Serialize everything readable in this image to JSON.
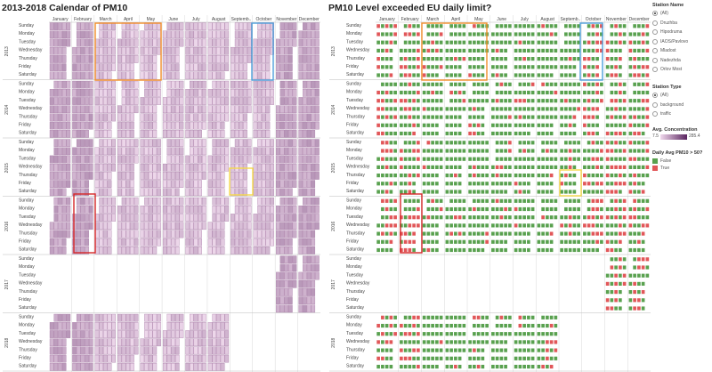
{
  "titles": {
    "left": "2013-2018 Calendar of PM10",
    "right": "PM10 Level exceeded EU daily limit?"
  },
  "months": [
    "January",
    "February",
    "March",
    "April",
    "May",
    "June",
    "July",
    "August",
    "Septemb..",
    "October",
    "November",
    "December"
  ],
  "days": [
    "Sunday",
    "Monday",
    "Tuesday",
    "Wednesday",
    "Thursday",
    "Friday",
    "Saturday"
  ],
  "years": [
    "2013",
    "2014",
    "2015",
    "2016",
    "2017",
    "2018"
  ],
  "sidebar": {
    "station_name": {
      "title": "Station Name",
      "options": [
        "(All)",
        "Druzhba",
        "Hipodruma",
        "IAOS/Pavlovo",
        "Mladost",
        "Nadezhda",
        "Orlov Most"
      ],
      "selected": "(All)"
    },
    "station_type": {
      "title": "Station Type",
      "options": [
        "(All)",
        "background",
        "traffic"
      ],
      "selected": "(All)"
    },
    "avg_conc": {
      "title": "Avg. Concentration",
      "min": "7.5",
      "max": "285.4"
    },
    "exceed": {
      "title": "Daily Avg PM10 > 50?",
      "items": [
        {
          "label": "False",
          "color": "#59a14f"
        },
        {
          "label": "True",
          "color": "#e15759"
        }
      ]
    }
  },
  "colors": {
    "heat_low": "#f1dcee",
    "heat_high": "#5a2560",
    "false": "#59a14f",
    "true": "#e15759",
    "orange_box": "#f28e2b",
    "blue_box": "#4e9fdc",
    "yellow_box": "#f5d94a",
    "red_box": "#d62728"
  },
  "chart_data": [
    {
      "type": "heatmap",
      "title": "2013-2018 Calendar of PM10",
      "rows": "year / weekday",
      "columns": "month / week",
      "color_measure": "Avg. Concentration",
      "color_range": [
        7.5,
        285.4
      ],
      "years_present": {
        "2013": [
          1,
          2,
          3,
          4,
          5,
          6,
          7,
          8,
          9,
          10,
          11,
          12
        ],
        "2014": [
          1,
          2,
          3,
          4,
          5,
          6,
          7,
          8,
          9,
          10,
          11,
          12
        ],
        "2015": [
          1,
          2,
          3,
          4,
          5,
          6,
          7,
          8,
          9,
          10,
          11,
          12
        ],
        "2016": [
          1,
          2,
          3,
          4,
          5,
          6,
          7,
          8,
          9,
          10,
          11,
          12
        ],
        "2017": [
          11,
          12
        ],
        "2018": [
          1,
          2,
          3,
          4,
          5,
          6,
          7,
          8
        ]
      }
    },
    {
      "type": "heatmap",
      "title": "PM10 Level exceeded EU daily limit?",
      "rows": "year / weekday",
      "columns": "month / week",
      "color_measure": "Daily Avg PM10 > 50?",
      "categories": [
        "False",
        "True"
      ],
      "years_present": {
        "2013": [
          1,
          2,
          3,
          4,
          5,
          6,
          7,
          8,
          9,
          10,
          11,
          12
        ],
        "2014": [
          1,
          2,
          3,
          4,
          5,
          6,
          7,
          8,
          9,
          10,
          11,
          12
        ],
        "2015": [
          1,
          2,
          3,
          4,
          5,
          6,
          7,
          8,
          9,
          10,
          11,
          12
        ],
        "2016": [
          1,
          2,
          3,
          4,
          5,
          6,
          7,
          8,
          9,
          10,
          11,
          12
        ],
        "2017": [
          11,
          12
        ],
        "2018": [
          1,
          2,
          3,
          4,
          5,
          6,
          7,
          8
        ]
      }
    }
  ]
}
